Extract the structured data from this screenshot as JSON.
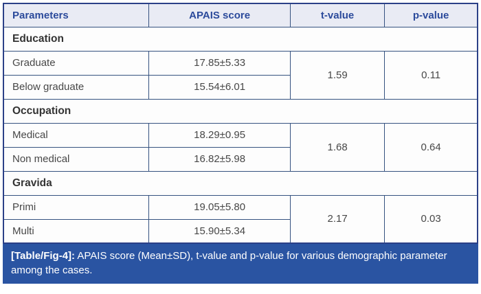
{
  "table": {
    "headers": [
      "Parameters",
      "APAIS score",
      "t-value",
      "p-value"
    ],
    "sections": [
      {
        "name": "Education",
        "rows": [
          {
            "parameter": "Graduate",
            "apais": "17.85±5.33"
          },
          {
            "parameter": "Below graduate",
            "apais": "15.54±6.01"
          }
        ],
        "t_value": "1.59",
        "p_value": "0.11"
      },
      {
        "name": "Occupation",
        "rows": [
          {
            "parameter": "Medical",
            "apais": "18.29±0.95"
          },
          {
            "parameter": "Non medical",
            "apais": "16.82±5.98"
          }
        ],
        "t_value": "1.68",
        "p_value": "0.64"
      },
      {
        "name": "Gravida",
        "rows": [
          {
            "parameter": "Primi",
            "apais": "19.05±5.80"
          },
          {
            "parameter": "Multi",
            "apais": "15.90±5.34"
          }
        ],
        "t_value": "2.17",
        "p_value": "0.03"
      }
    ]
  },
  "caption": {
    "label": "[Table/Fig-4]:",
    "text": "APAIS score (Mean±SD), t-value and p-value for various demographic parameter among the cases."
  },
  "colors": {
    "header_bg": "#e9ebf4",
    "header_text": "#2b4a9b",
    "grid_border": "#34517f",
    "outer_border": "#2b4087",
    "caption_bg": "#2a54a2",
    "caption_text": "#ffffff",
    "body_text": "#474747"
  }
}
